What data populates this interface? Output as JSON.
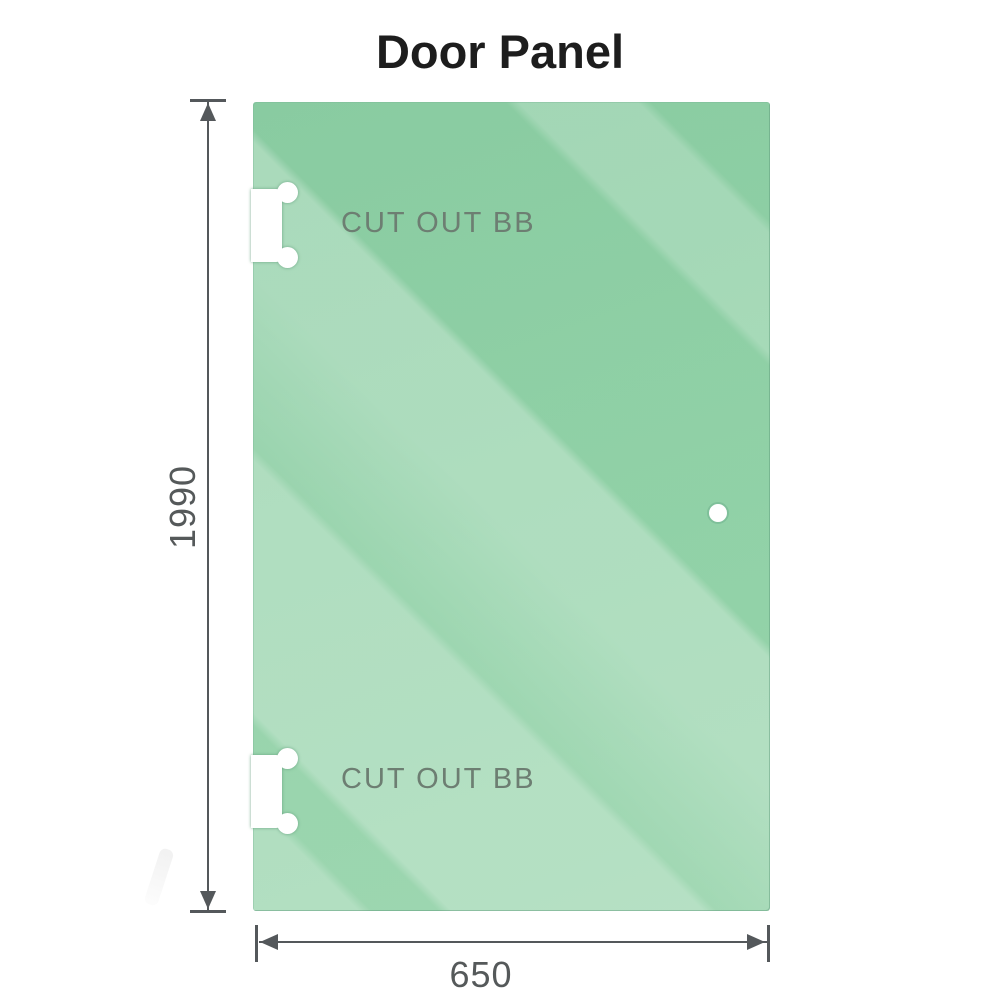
{
  "title": "Door Panel",
  "panel": {
    "type": "glass-door-panel",
    "cutouts": [
      {
        "position": "top",
        "label": "CUT OUT BB"
      },
      {
        "position": "bottom",
        "label": "CUT OUT BB"
      }
    ],
    "hole": {
      "shape": "circle",
      "side": "right-middle"
    }
  },
  "dimensions": {
    "height": {
      "value": "1990",
      "orientation": "vertical"
    },
    "width": {
      "value": "650",
      "orientation": "horizontal"
    }
  },
  "colors": {
    "glass_base": "#84c99d",
    "glass_highlight": "#a9dcba",
    "dimension_line": "#54585b",
    "dimension_text": "#55595a",
    "cutout_label_text": "#6d7e72",
    "title_text": "#1d1d1d",
    "background": "#ffffff"
  }
}
